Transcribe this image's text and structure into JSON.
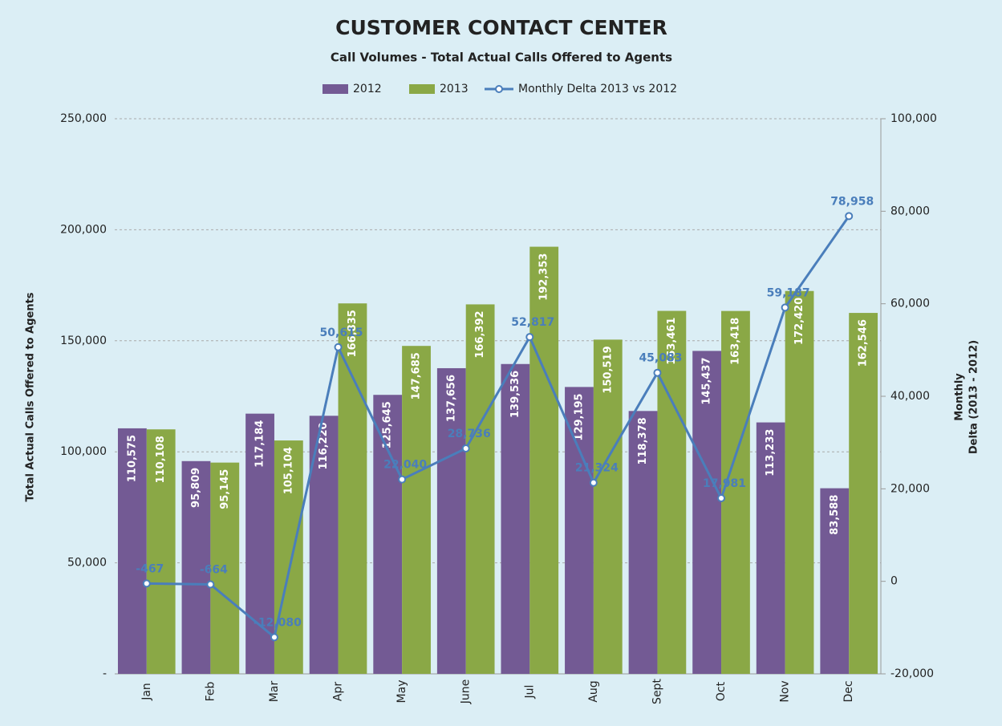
{
  "chart_data": {
    "type": "bar",
    "title": "CUSTOMER CONTACT CENTER",
    "subtitle": "Call Volumes - Total Actual Calls Offered to Agents",
    "ylabel": "Total Actual Calls Offered to Agents",
    "y2label": [
      "Monthly",
      "Delta (2013 - 2012)"
    ],
    "categories": [
      "Jan",
      "Feb",
      "Mar",
      "Apr",
      "May",
      "June",
      "Jul",
      "Aug",
      "Sept",
      "Oct",
      "Nov",
      "Dec"
    ],
    "series": [
      {
        "name": "2012",
        "type": "bar",
        "color": "#735a94",
        "values": [
          110575,
          95809,
          117184,
          116220,
          125645,
          137656,
          139536,
          129195,
          118378,
          145437,
          113233,
          83588
        ],
        "value_labels": [
          "110,575",
          "95,809",
          "117,184",
          "116,220",
          "125,645",
          "137,656",
          "139,536",
          "129,195",
          "118,378",
          "145,437",
          "113,233",
          "83,588"
        ]
      },
      {
        "name": "2013",
        "type": "bar",
        "color": "#8aa846",
        "values": [
          110108,
          95145,
          105104,
          166835,
          147685,
          166392,
          192353,
          150519,
          163461,
          163418,
          172420,
          162546
        ],
        "value_labels": [
          "110,108",
          "95,145",
          "105,104",
          "166,835",
          "147,685",
          "166,392",
          "192,353",
          "150,519",
          "163,461",
          "163,418",
          "172,420",
          "162,546"
        ]
      },
      {
        "name": "Monthly Delta 2013 vs 2012",
        "type": "line",
        "axis": "y2",
        "color": "#4a7ebb",
        "values": [
          -467,
          -664,
          -12080,
          50615,
          22040,
          28736,
          52817,
          21324,
          45083,
          17981,
          59187,
          78958
        ],
        "value_labels": [
          "-467",
          "-664",
          "-12,080",
          "50,615",
          "22,040",
          "28,736",
          "52,817",
          "21,324",
          "45,083",
          "17,981",
          "59,187",
          "78,958"
        ]
      }
    ],
    "ylim": [
      0,
      250000
    ],
    "yticks": [
      {
        "value": 0,
        "label": "-"
      },
      {
        "value": 50000,
        "label": "50,000"
      },
      {
        "value": 100000,
        "label": "100,000"
      },
      {
        "value": 150000,
        "label": "150,000"
      },
      {
        "value": 200000,
        "label": "200,000"
      },
      {
        "value": 250000,
        "label": "250,000"
      }
    ],
    "y2lim": [
      -20000,
      100000
    ],
    "y2ticks": [
      {
        "value": -20000,
        "label": "-20,000"
      },
      0,
      {
        "value": 20000,
        "label": "20,000"
      },
      {
        "value": 40000,
        "label": "40,000"
      },
      {
        "value": 60000,
        "label": "60,000"
      },
      {
        "value": 80000,
        "label": "80,000"
      },
      {
        "value": 100000,
        "label": "100,000"
      }
    ],
    "grid": true,
    "legend": "top"
  }
}
